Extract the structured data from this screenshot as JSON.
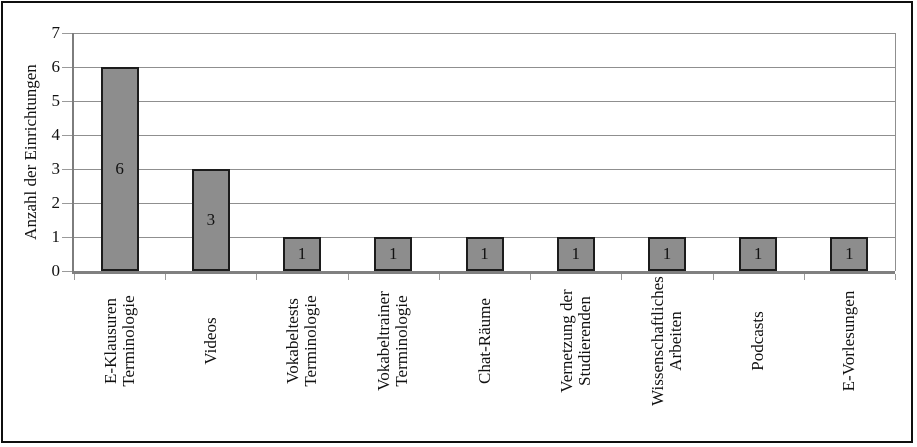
{
  "chart_data": {
    "type": "bar",
    "title": "",
    "xlabel": "",
    "ylabel": "Anzahl der Einrichtungen",
    "categories": [
      "E-Klausuren Terminologie",
      "Videos",
      "Vokabeltests Terminologie",
      "Vokabeltrainer Terminologie",
      "Chat-Räume",
      "Vernetzung der Studierenden",
      "Wissenschaftliches Arbeiten",
      "Podcasts",
      "E-Vorlesungen"
    ],
    "category_label_lines": [
      [
        "E-Klausuren",
        "Terminologie"
      ],
      [
        "Videos"
      ],
      [
        "Vokabeltests",
        "Terminologie"
      ],
      [
        "Vokabeltrainer",
        "Terminologie"
      ],
      [
        "Chat-Räume"
      ],
      [
        "Vernetzung der",
        "Studierenden"
      ],
      [
        "Wissenschaftliches",
        "Arbeiten"
      ],
      [
        "Podcasts"
      ],
      [
        "E-Vorlesungen"
      ]
    ],
    "values": [
      6,
      3,
      1,
      1,
      1,
      1,
      1,
      1,
      1
    ],
    "data_labels": [
      "6",
      "3",
      "1",
      "1",
      "1",
      "1",
      "1",
      "1",
      "1"
    ],
    "ylim": [
      0,
      7
    ],
    "yticks": [
      0,
      1,
      2,
      3,
      4,
      5,
      6,
      7
    ],
    "grid": true,
    "legend_position": "none",
    "colors": {
      "bar_fill": "#8d8d8d",
      "bar_border": "#1c1c1c",
      "gridline": "#8f8f8f",
      "y_axis_line": "#7d7d7d",
      "x_axis_line": "#808080",
      "tick": "#9a9a9a",
      "text": "#111111",
      "background": "#ffffff",
      "frame_border": "#0f0f0f"
    }
  }
}
